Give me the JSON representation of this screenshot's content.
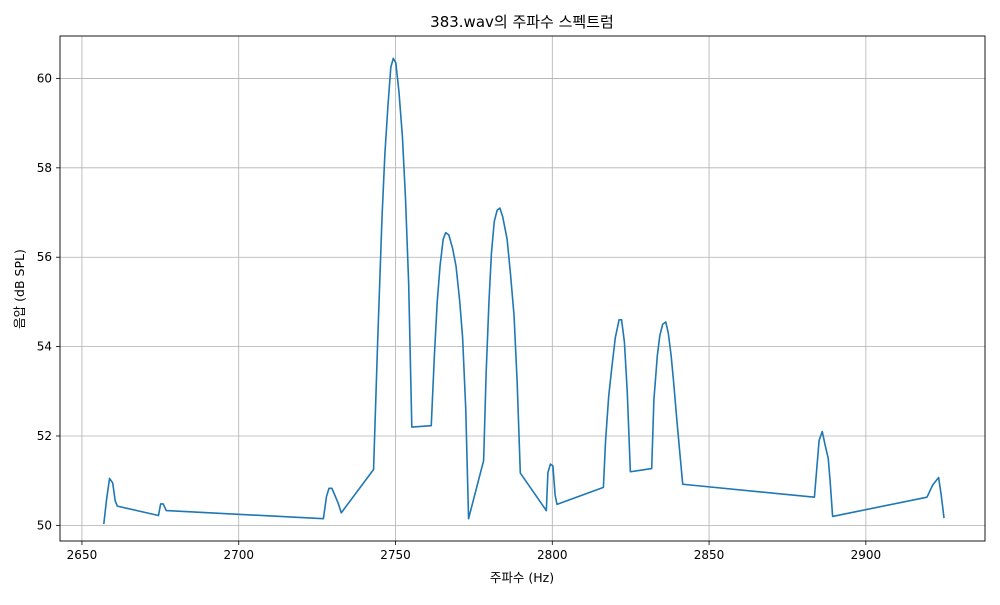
{
  "chart_data": {
    "type": "line",
    "title": "383.wav의 주파수 스펙트럼",
    "xlabel": "주파수 (Hz)",
    "ylabel": "음압 (dB SPL)",
    "xlim": [
      2643,
      2938
    ],
    "ylim": [
      49.65,
      60.95
    ],
    "xticks": [
      2650,
      2700,
      2750,
      2800,
      2850,
      2900
    ],
    "yticks": [
      50,
      52,
      54,
      56,
      58,
      60
    ],
    "grid": true,
    "colors": {
      "line": "#1f77b4",
      "grid": "#b0b0b0",
      "axes": "#000000"
    },
    "series": [
      {
        "x": [
          2657.0,
          2657.8,
          2658.8,
          2659.8,
          2660.6,
          2661.3,
          2674.4,
          2675.1,
          2675.9,
          2676.9,
          2727.0,
          2728.0,
          2728.8,
          2729.7,
          2730.5,
          2731.7,
          2732.7,
          2743.0,
          2744.3,
          2745.7,
          2746.6,
          2747.6,
          2748.5,
          2749.3,
          2750.1,
          2751.1,
          2752.2,
          2753.2,
          2754.2,
          2755.2,
          2761.4,
          2762.4,
          2763.3,
          2764.2,
          2765.2,
          2766.0,
          2767.0,
          2768.2,
          2769.3,
          2770.5,
          2771.4,
          2772.4,
          2773.3,
          2778.1,
          2778.9,
          2779.8,
          2780.6,
          2781.5,
          2782.4,
          2783.3,
          2784.2,
          2785.6,
          2786.7,
          2787.8,
          2788.8,
          2789.8,
          2798.1,
          2798.6,
          2799.4,
          2800.2,
          2800.9,
          2801.5,
          2816.3,
          2817.0,
          2818.0,
          2819.1,
          2820.1,
          2821.3,
          2822.1,
          2823.0,
          2823.9,
          2824.9,
          2831.7,
          2832.4,
          2833.5,
          2834.3,
          2835.2,
          2836.2,
          2837.0,
          2837.9,
          2838.7,
          2839.8,
          2840.7,
          2841.6,
          2883.6,
          2884.5,
          2885.1,
          2886.1,
          2887.0,
          2888.0,
          2888.6,
          2889.4,
          2919.5,
          2921.3,
          2923.2,
          2924.0,
          2924.9
        ],
        "values": [
          50.05,
          50.55,
          51.05,
          50.95,
          50.55,
          50.43,
          50.22,
          50.48,
          50.48,
          50.33,
          50.15,
          50.65,
          50.83,
          50.83,
          50.7,
          50.5,
          50.28,
          51.25,
          54.1,
          56.9,
          58.3,
          59.4,
          60.25,
          60.45,
          60.35,
          59.7,
          58.7,
          57.3,
          55.4,
          52.2,
          52.23,
          53.8,
          55.0,
          55.8,
          56.4,
          56.55,
          56.5,
          56.2,
          55.8,
          55.0,
          54.2,
          52.6,
          50.15,
          51.45,
          53.4,
          55.0,
          56.1,
          56.8,
          57.05,
          57.1,
          56.9,
          56.4,
          55.6,
          54.7,
          53.2,
          51.17,
          50.33,
          51.18,
          51.37,
          51.33,
          50.68,
          50.47,
          50.85,
          51.9,
          52.9,
          53.6,
          54.2,
          54.6,
          54.6,
          54.1,
          53.0,
          51.2,
          51.27,
          52.8,
          53.8,
          54.25,
          54.5,
          54.55,
          54.3,
          53.8,
          53.2,
          52.3,
          51.6,
          50.92,
          50.63,
          51.4,
          51.9,
          52.1,
          51.8,
          51.5,
          51.0,
          50.2,
          50.63,
          50.9,
          51.07,
          50.7,
          50.18
        ]
      }
    ]
  }
}
